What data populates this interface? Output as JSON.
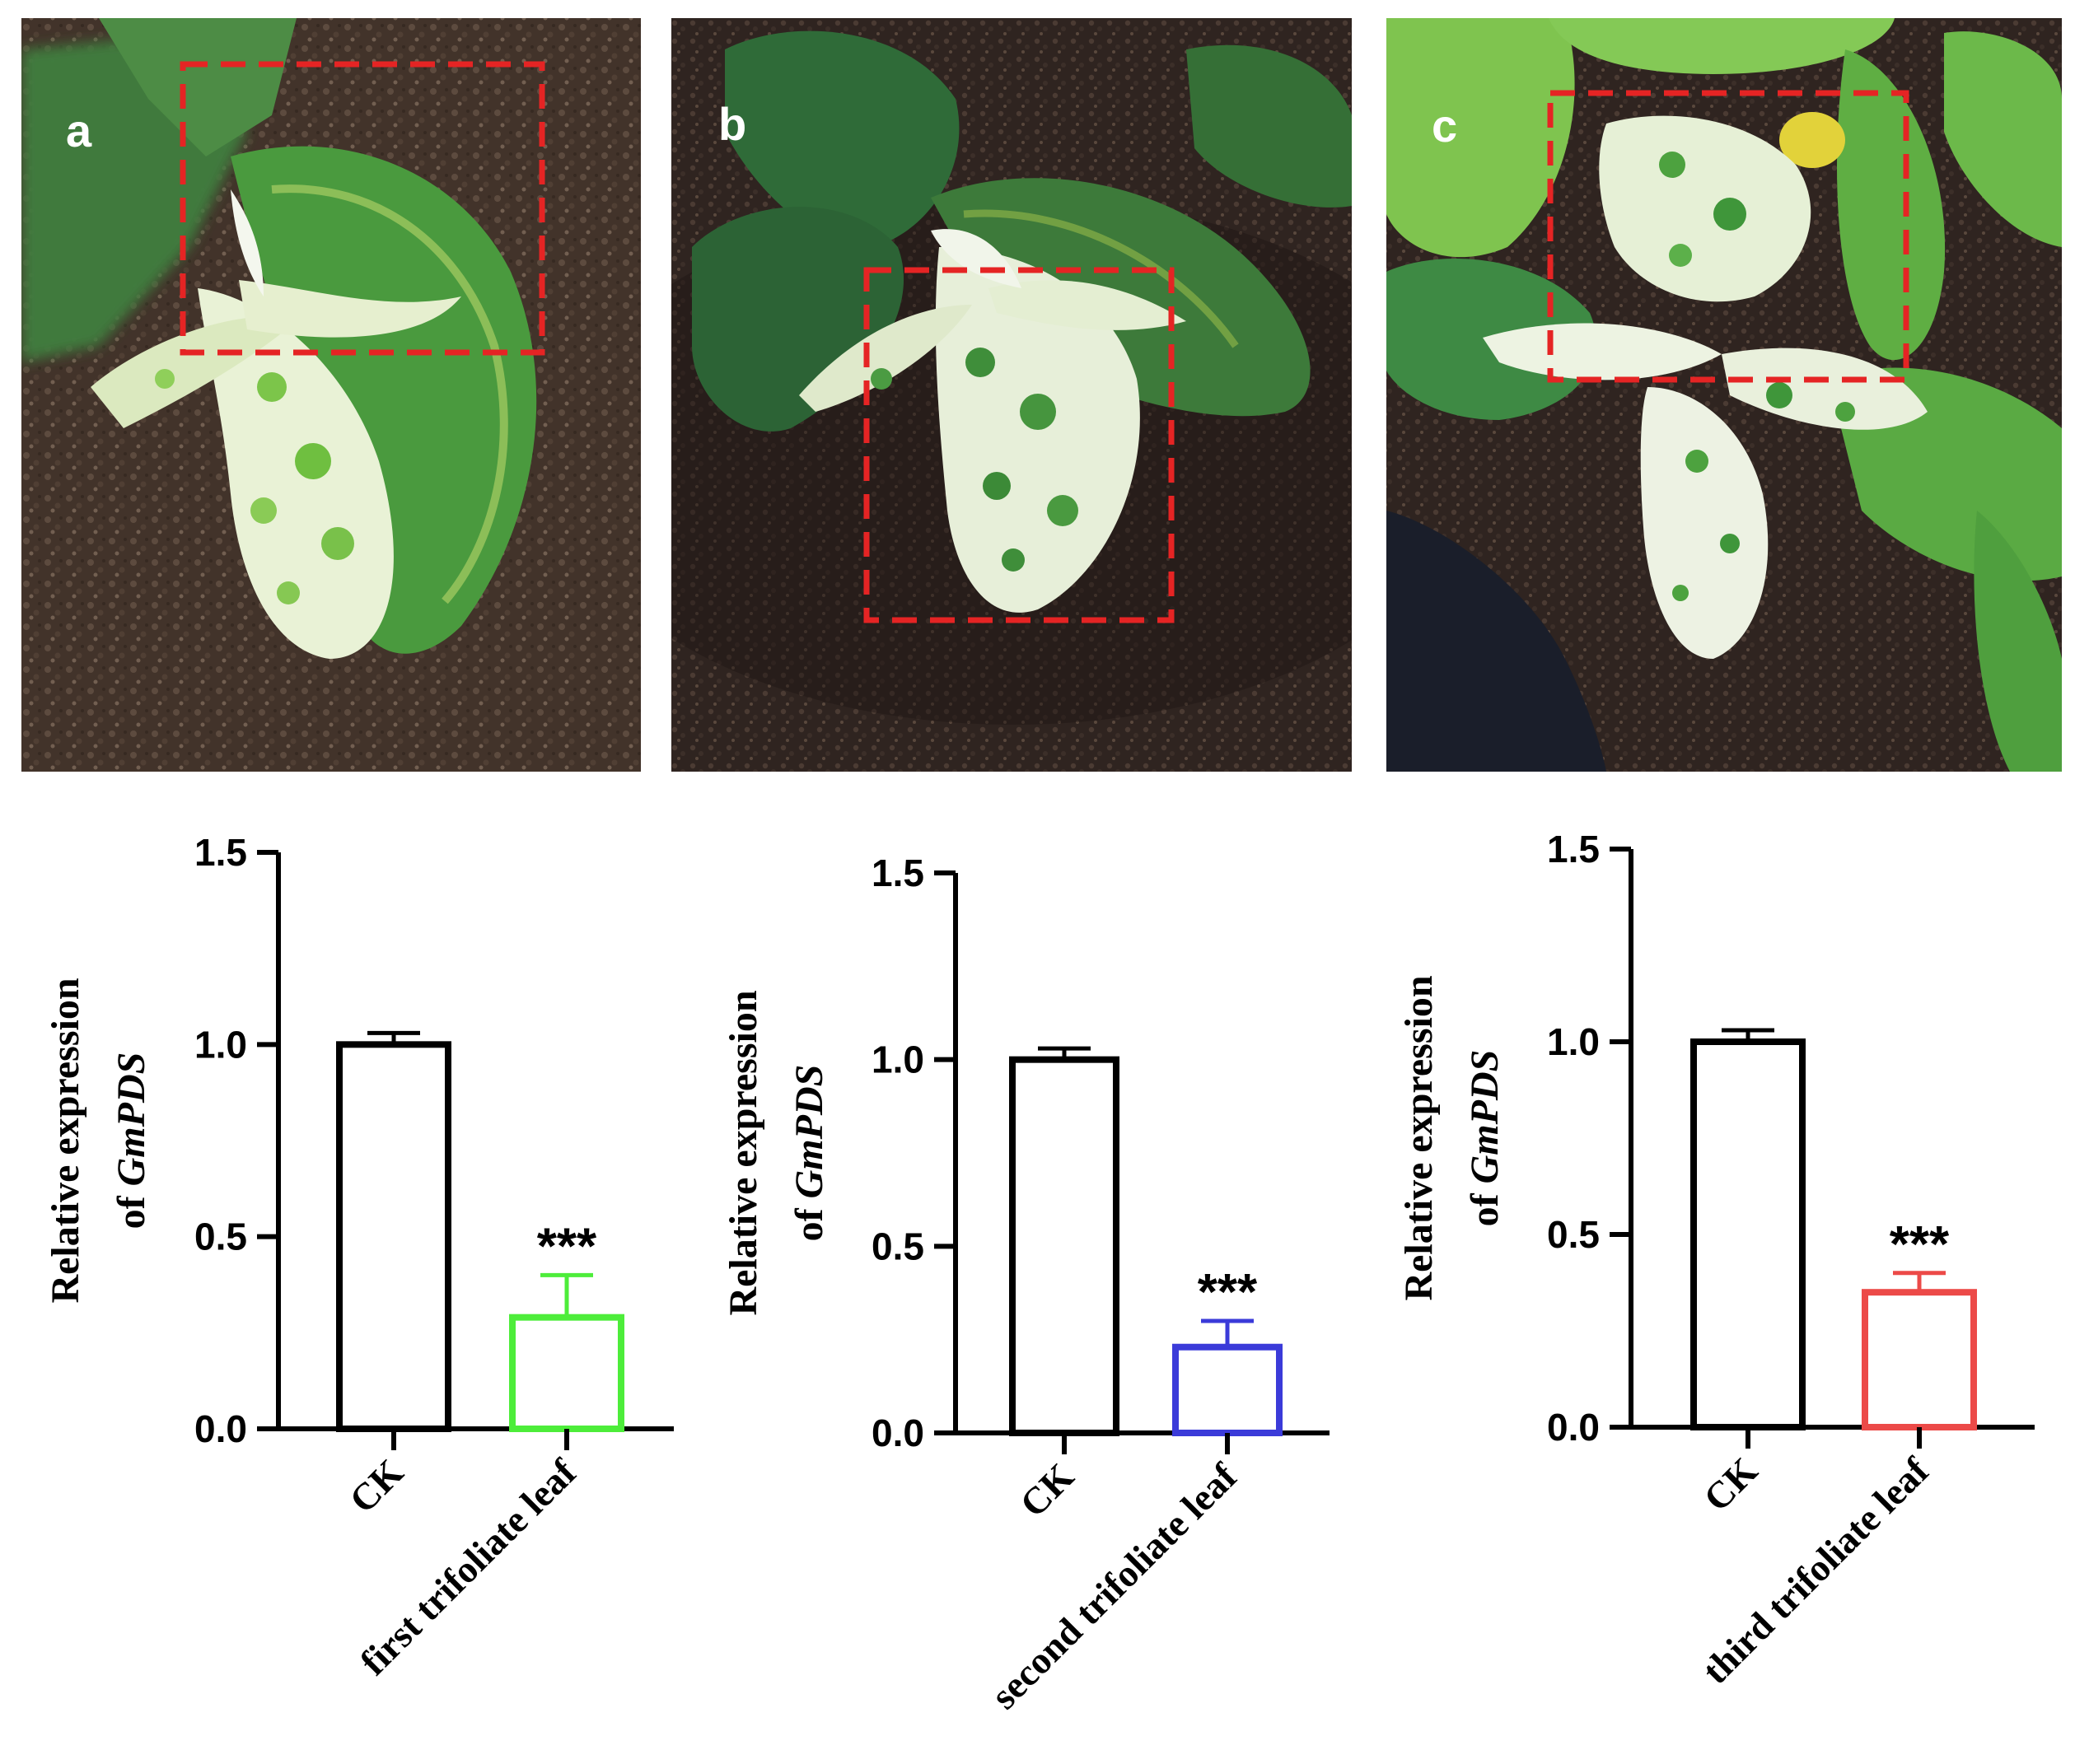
{
  "panels": [
    {
      "label": "a"
    },
    {
      "label": "b"
    },
    {
      "label": "c"
    }
  ],
  "chart_data": [
    {
      "type": "bar",
      "categories": [
        "CK",
        "first trifoliate leaf"
      ],
      "values": [
        1.0,
        0.29
      ],
      "errors": [
        0.03,
        0.11
      ],
      "colors": [
        "#000000",
        "#4ded3a"
      ],
      "significance": [
        "",
        "***"
      ],
      "ylabel_line1": "Relative expression",
      "ylabel_line2_prefix": "of ",
      "ylabel_line2_gene": "GmPDS",
      "ylim": [
        0,
        1.5
      ],
      "yticks": [
        "0.0",
        "0.5",
        "1.0",
        "1.5"
      ],
      "ytick_values": [
        0,
        0.5,
        1.0,
        1.5
      ]
    },
    {
      "type": "bar",
      "categories": [
        "CK",
        "second trifoliate leaf"
      ],
      "values": [
        1.0,
        0.23
      ],
      "errors": [
        0.03,
        0.07
      ],
      "colors": [
        "#000000",
        "#3b3bd9"
      ],
      "significance": [
        "",
        "***"
      ],
      "ylabel_line1": "Relative expression",
      "ylabel_line2_prefix": "of ",
      "ylabel_line2_gene": "GmPDS",
      "ylim": [
        0,
        1.5
      ],
      "yticks": [
        "0.0",
        "0.5",
        "1.0",
        "1.5"
      ],
      "ytick_values": [
        0,
        0.5,
        1.0,
        1.5
      ]
    },
    {
      "type": "bar",
      "categories": [
        "CK",
        "third trifoliate leaf"
      ],
      "values": [
        1.0,
        0.35
      ],
      "errors": [
        0.03,
        0.05
      ],
      "colors": [
        "#000000",
        "#ec4a48"
      ],
      "significance": [
        "",
        "***"
      ],
      "ylabel_line1": "Relative expression",
      "ylabel_line2_prefix": "of ",
      "ylabel_line2_gene": "GmPDS",
      "ylim": [
        0,
        1.5
      ],
      "yticks": [
        "0.0",
        "0.5",
        "1.0",
        "1.5"
      ],
      "ytick_values": [
        0,
        0.5,
        1.0,
        1.5
      ]
    }
  ]
}
